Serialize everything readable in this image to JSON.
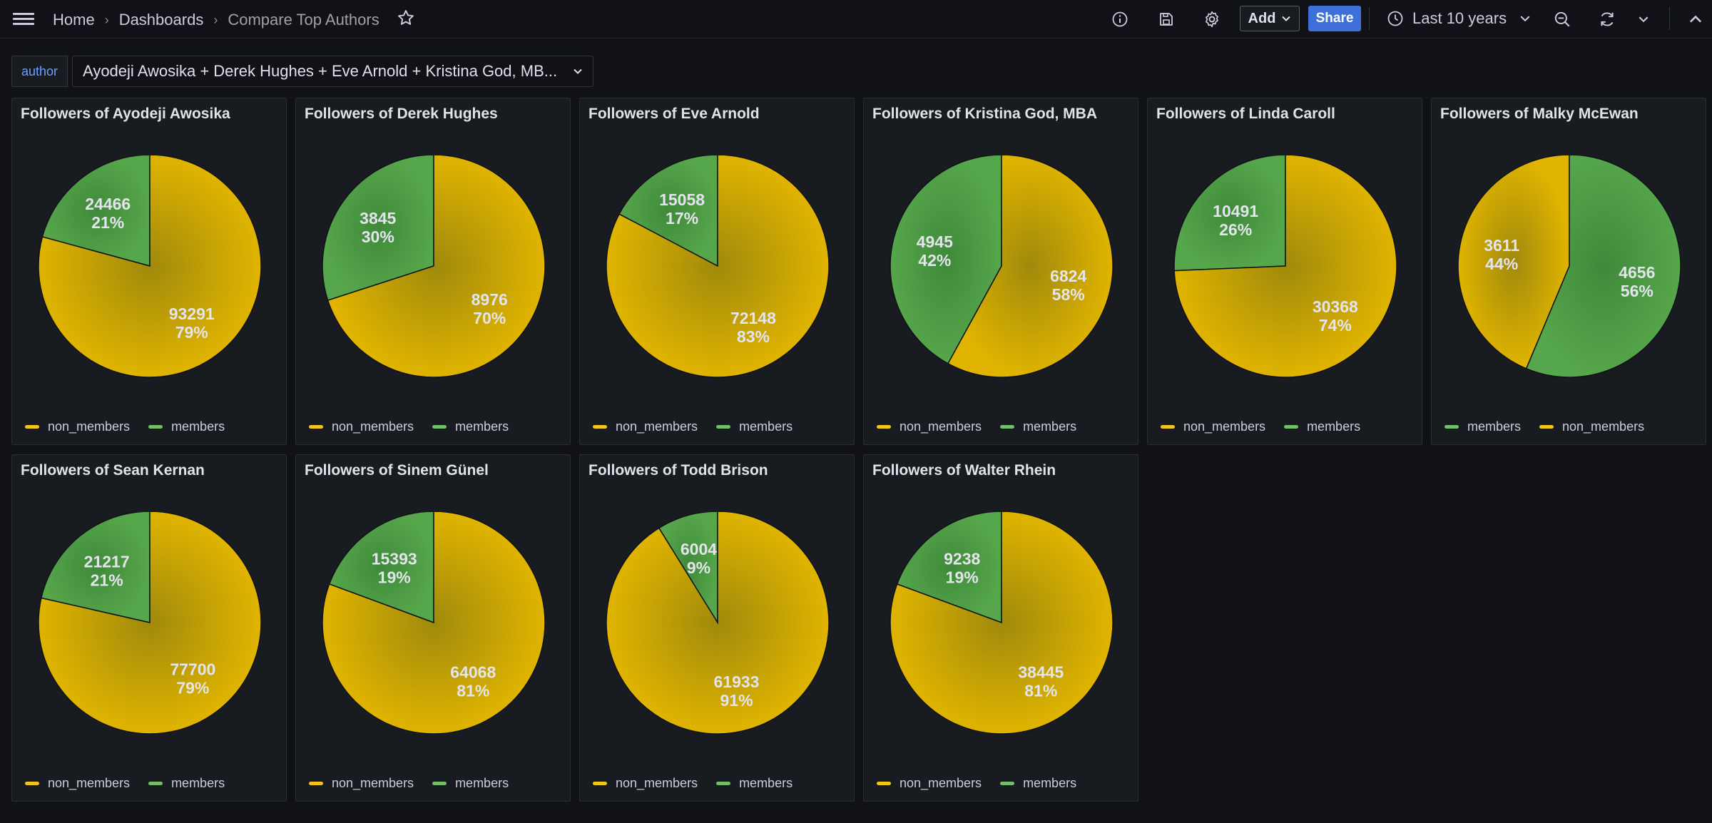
{
  "breadcrumb": {
    "home": "Home",
    "dashboards": "Dashboards",
    "current": "Compare Top Authors"
  },
  "toolbar": {
    "add_label": "Add",
    "share_label": "Share",
    "time_range": "Last 10 years"
  },
  "variable": {
    "name": "author",
    "value": "Ayodeji Awosika + Derek Hughes + Eve Arnold + Kristina God, MB..."
  },
  "colors": {
    "non_members": "#e0b400",
    "members": "#56a64b",
    "background": "#111217",
    "panel": "#181b1f"
  },
  "panels": [
    {
      "title": "Followers of Ayodeji Awosika",
      "legend": [
        "non_members",
        "members"
      ],
      "slices": [
        {
          "name": "members",
          "value": 24466,
          "pct": "21%"
        },
        {
          "name": "non_members",
          "value": 93291,
          "pct": "79%"
        }
      ]
    },
    {
      "title": "Followers of Derek Hughes",
      "legend": [
        "non_members",
        "members"
      ],
      "slices": [
        {
          "name": "members",
          "value": 3845,
          "pct": "30%"
        },
        {
          "name": "non_members",
          "value": 8976,
          "pct": "70%"
        }
      ]
    },
    {
      "title": "Followers of Eve Arnold",
      "legend": [
        "non_members",
        "members"
      ],
      "slices": [
        {
          "name": "members",
          "value": 15058,
          "pct": "17%"
        },
        {
          "name": "non_members",
          "value": 72148,
          "pct": "83%"
        }
      ]
    },
    {
      "title": "Followers of Kristina God, MBA",
      "legend": [
        "non_members",
        "members"
      ],
      "slices": [
        {
          "name": "members",
          "value": 4945,
          "pct": "42%"
        },
        {
          "name": "non_members",
          "value": 6824,
          "pct": "58%"
        }
      ]
    },
    {
      "title": "Followers of Linda Caroll",
      "legend": [
        "non_members",
        "members"
      ],
      "slices": [
        {
          "name": "members",
          "value": 10491,
          "pct": "26%"
        },
        {
          "name": "non_members",
          "value": 30368,
          "pct": "74%"
        }
      ]
    },
    {
      "title": "Followers of Malky McEwan",
      "legend": [
        "members",
        "non_members"
      ],
      "slices": [
        {
          "name": "non_members",
          "value": 3611,
          "pct": "44%"
        },
        {
          "name": "members",
          "value": 4656,
          "pct": "56%"
        }
      ]
    },
    {
      "title": "Followers of Sean Kernan",
      "legend": [
        "non_members",
        "members"
      ],
      "slices": [
        {
          "name": "members",
          "value": 21217,
          "pct": "21%"
        },
        {
          "name": "non_members",
          "value": 77700,
          "pct": "79%"
        }
      ]
    },
    {
      "title": "Followers of Sinem Günel",
      "legend": [
        "non_members",
        "members"
      ],
      "slices": [
        {
          "name": "members",
          "value": 15393,
          "pct": "19%"
        },
        {
          "name": "non_members",
          "value": 64068,
          "pct": "81%"
        }
      ]
    },
    {
      "title": "Followers of Todd Brison",
      "legend": [
        "non_members",
        "members"
      ],
      "slices": [
        {
          "name": "members",
          "value": 6004,
          "pct": "9%"
        },
        {
          "name": "non_members",
          "value": 61933,
          "pct": "91%"
        }
      ]
    },
    {
      "title": "Followers of Walter Rhein",
      "legend": [
        "non_members",
        "members"
      ],
      "slices": [
        {
          "name": "members",
          "value": 9238,
          "pct": "19%"
        },
        {
          "name": "non_members",
          "value": 38445,
          "pct": "81%"
        }
      ]
    }
  ],
  "chart_data": [
    {
      "type": "pie",
      "title": "Followers of Ayodeji Awosika",
      "categories": [
        "members",
        "non_members"
      ],
      "values": [
        24466,
        93291
      ]
    },
    {
      "type": "pie",
      "title": "Followers of Derek Hughes",
      "categories": [
        "members",
        "non_members"
      ],
      "values": [
        3845,
        8976
      ]
    },
    {
      "type": "pie",
      "title": "Followers of Eve Arnold",
      "categories": [
        "members",
        "non_members"
      ],
      "values": [
        15058,
        72148
      ]
    },
    {
      "type": "pie",
      "title": "Followers of Kristina God, MBA",
      "categories": [
        "members",
        "non_members"
      ],
      "values": [
        4945,
        6824
      ]
    },
    {
      "type": "pie",
      "title": "Followers of Linda Caroll",
      "categories": [
        "members",
        "non_members"
      ],
      "values": [
        10491,
        30368
      ]
    },
    {
      "type": "pie",
      "title": "Followers of Malky McEwan",
      "categories": [
        "non_members",
        "members"
      ],
      "values": [
        3611,
        4656
      ]
    },
    {
      "type": "pie",
      "title": "Followers of Sean Kernan",
      "categories": [
        "members",
        "non_members"
      ],
      "values": [
        21217,
        77700
      ]
    },
    {
      "type": "pie",
      "title": "Followers of Sinem Günel",
      "categories": [
        "members",
        "non_members"
      ],
      "values": [
        15393,
        64068
      ]
    },
    {
      "type": "pie",
      "title": "Followers of Todd Brison",
      "categories": [
        "members",
        "non_members"
      ],
      "values": [
        6004,
        61933
      ]
    },
    {
      "type": "pie",
      "title": "Followers of Walter Rhein",
      "categories": [
        "members",
        "non_members"
      ],
      "values": [
        9238,
        38445
      ]
    }
  ]
}
